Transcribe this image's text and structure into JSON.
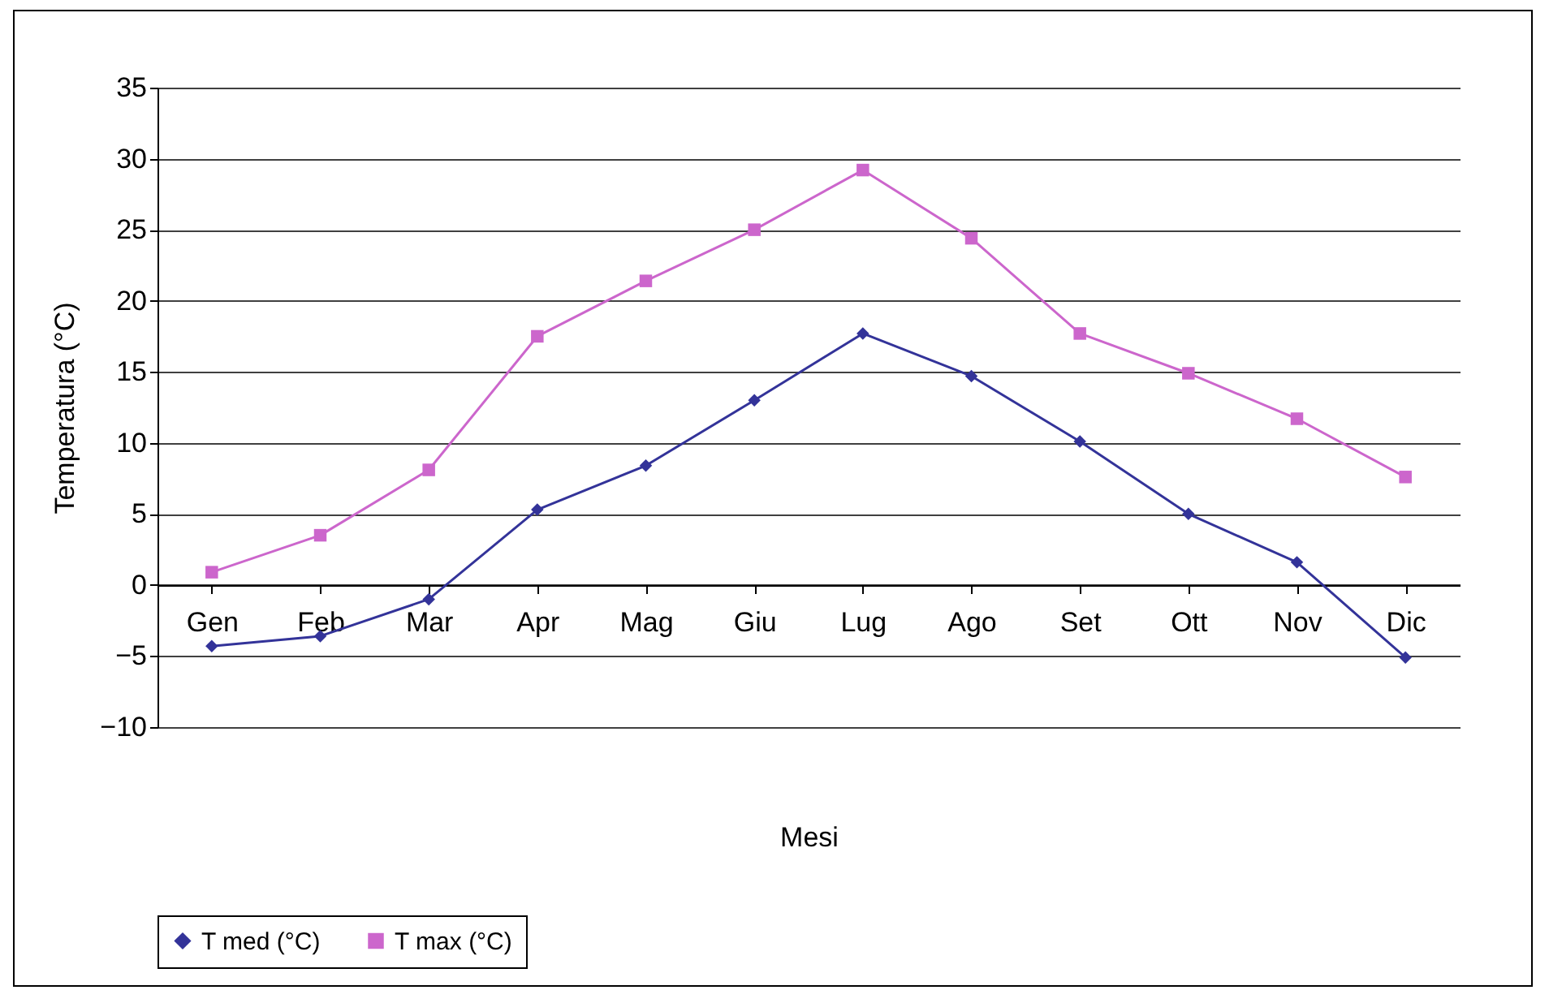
{
  "chart_data": {
    "type": "line",
    "xlabel": "Mesi",
    "ylabel": "Temperatura (°C)",
    "categories": [
      "Gen",
      "Feb",
      "Mar",
      "Apr",
      "Mag",
      "Giu",
      "Lug",
      "Ago",
      "Set",
      "Ott",
      "Nov",
      "Dic"
    ],
    "series": [
      {
        "name": "T med (°C)",
        "color": "#333399",
        "marker": "diamond",
        "values": [
          -4.3,
          -3.6,
          -1,
          5.3,
          8.4,
          13,
          17.7,
          14.7,
          10.1,
          5,
          1.6,
          -5.1
        ]
      },
      {
        "name": "T max (°C)",
        "color": "#cc66cc",
        "marker": "square",
        "values": [
          0.9,
          3.5,
          8.1,
          17.5,
          21.4,
          25,
          29.2,
          24.4,
          17.7,
          14.9,
          11.7,
          7.6
        ]
      }
    ],
    "ylim": [
      -10,
      35
    ],
    "yticks": [
      -10,
      -5,
      0,
      5,
      10,
      15,
      20,
      25,
      30,
      35
    ],
    "grid": "y",
    "legend": "bottom"
  }
}
